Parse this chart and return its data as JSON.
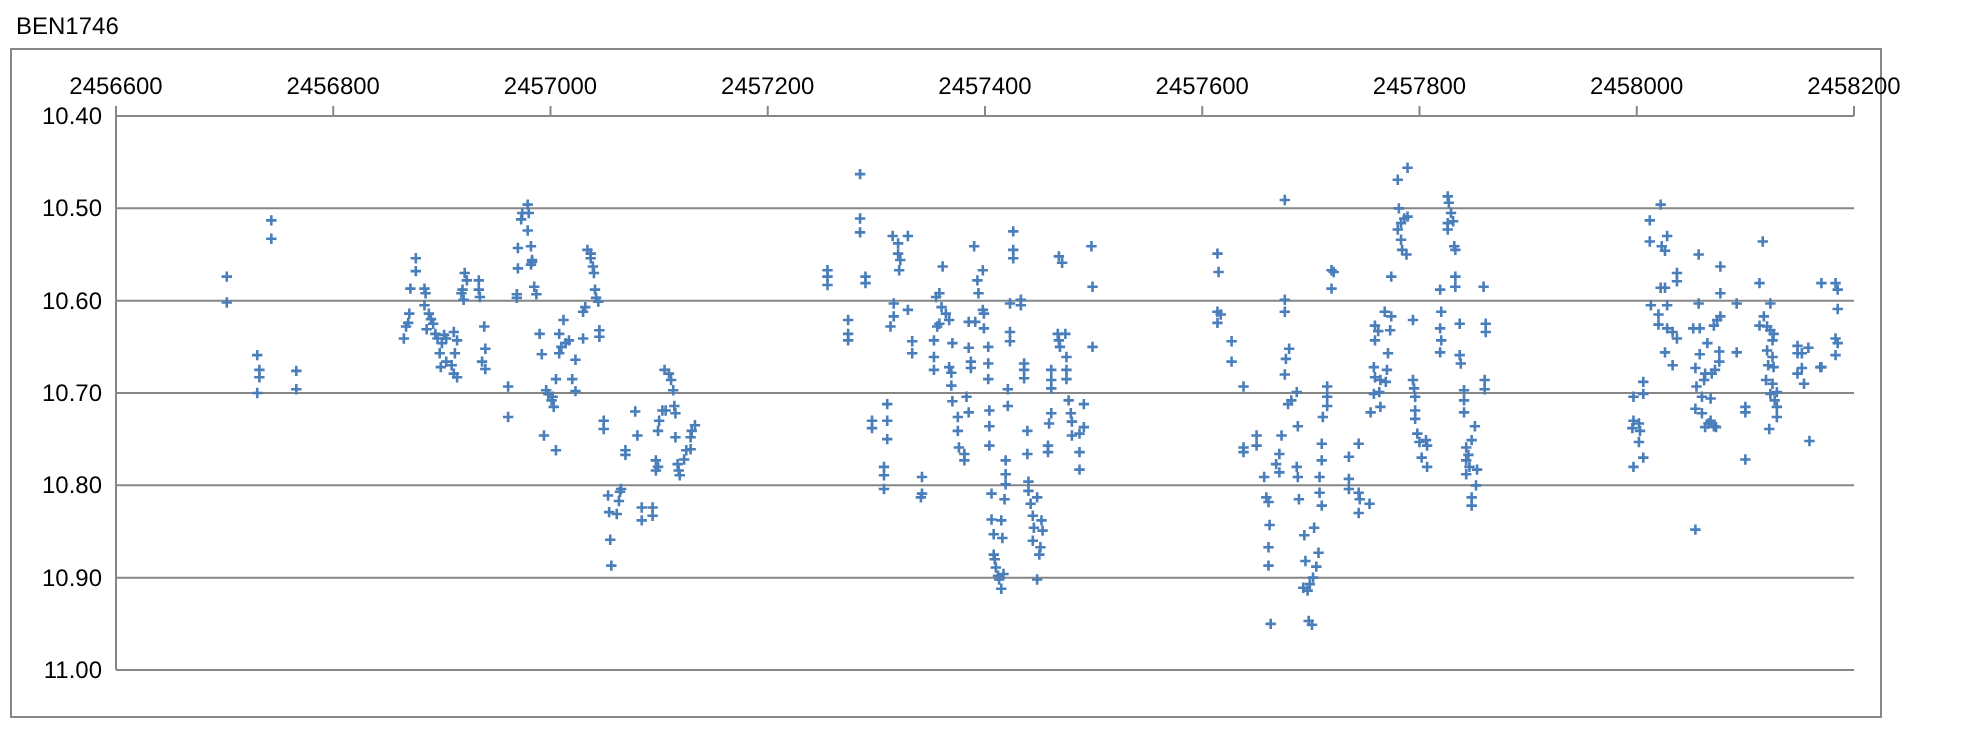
{
  "chart_data": {
    "type": "scatter",
    "title": "BEN1746",
    "xlim": [
      2456600,
      2458200
    ],
    "xticks": [
      2456600,
      2456800,
      2457000,
      2457200,
      2457400,
      2457600,
      2457800,
      2458000,
      2458200
    ],
    "ylim": [
      11.0,
      10.4
    ],
    "yticks": [
      {
        "value": 10.4,
        "label": "10.40"
      },
      {
        "value": 10.5,
        "label": "10.50"
      },
      {
        "value": 10.6,
        "label": "10.60"
      },
      {
        "value": 10.7,
        "label": "10.70"
      },
      {
        "value": 10.8,
        "label": "10.80"
      },
      {
        "value": 10.9,
        "label": "10.90"
      },
      {
        "value": 11.0,
        "label": "11.00"
      }
    ],
    "grid": "y",
    "marker": "cross",
    "series": [
      {
        "color": "#4a7ebb",
        "x": [
          2456702,
          2456702,
          2456743,
          2456743,
          2456730,
          2456732,
          2456732,
          2456730,
          2456766,
          2456766,
          2456876,
          2456876,
          2456871,
          2456870,
          2456869,
          2456867,
          2456865,
          2456884,
          2456885,
          2456884,
          2456888,
          2456890,
          2456892,
          2456886,
          2456894,
          2456896,
          2456900,
          2456898,
          2456902,
          2456904,
          2456899,
          2456904,
          2456911,
          2456914,
          2456912,
          2456911,
          2456914,
          2456909,
          2456921,
          2456923,
          2456919,
          2456920,
          2456918,
          2456934,
          2456934,
          2456935,
          2456939,
          2456940,
          2456937,
          2456940,
          2456961,
          2456961,
          2456970,
          2456970,
          2456969,
          2456969,
          2456973,
          2456974,
          2456979,
          2456980,
          2456979,
          2456982,
          2456983,
          2456982,
          2456985,
          2456987,
          2456983,
          2456990,
          2456992,
          2456996,
          2456998,
          2457001,
          2457003,
          2457002,
          2456994,
          2457005,
          2457005,
          2457008,
          2457008,
          2457010,
          2457012,
          2457014,
          2457017,
          2457020,
          2457023,
          2457023,
          2457030,
          2457030,
          2457032,
          2457034,
          2457037,
          2457039,
          2457040,
          2457037,
          2457041,
          2457042,
          2457044,
          2457045,
          2457045,
          2457049,
          2457049,
          2457053,
          2457054,
          2457056,
          2457055,
          2457063,
          2457064,
          2457065,
          2457061,
          2457069,
          2457069,
          2457078,
          2457080,
          2457084,
          2457084,
          2457094,
          2457094,
          2457097,
          2457099,
          2457097,
          2457099,
          2457100,
          2457103,
          2457106,
          2457105,
          2457109,
          2457111,
          2457113,
          2457114,
          2457115,
          2457115,
          2457117,
          2457118,
          2457119,
          2457123,
          2457125,
          2457129,
          2457129,
          2457130,
          2457133,
          2457285,
          2457285,
          2457285,
          2457255,
          2457255,
          2457255,
          2457290,
          2457290,
          2457274,
          2457274,
          2457274,
          2457315,
          2457320,
          2457320,
          2457322,
          2457321,
          2457329,
          2457316,
          2457316,
          2457313,
          2457329,
          2457333,
          2457333,
          2457310,
          2457310,
          2457310,
          2457296,
          2457296,
          2457307,
          2457307,
          2457307,
          2457342,
          2457342,
          2457341,
          2457361,
          2457358,
          2457355,
          2457360,
          2457364,
          2457367,
          2457358,
          2457356,
          2457353,
          2457353,
          2457353,
          2457367,
          2457369,
          2457369,
          2457370,
          2457370,
          2457375,
          2457375,
          2457376,
          2457381,
          2457381,
          2457383,
          2457385,
          2457385,
          2457387,
          2457387,
          2457385,
          2457391,
          2457390,
          2457393,
          2457394,
          2457398,
          2457398,
          2457399,
          2457399,
          2457403,
          2457403,
          2457403,
          2457404,
          2457404,
          2457404,
          2457406,
          2457406,
          2457408,
          2457408,
          2457409,
          2457410,
          2457412,
          2457413,
          2457415,
          2457417,
          2457415,
          2457416,
          2457418,
          2457419,
          2457419,
          2457419,
          2457421,
          2457421,
          2457423,
          2457423,
          2457423,
          2457426,
          2457426,
          2457426,
          2457433,
          2457433,
          2457436,
          2457436,
          2457436,
          2457439,
          2457439,
          2457440,
          2457440,
          2457442,
          2457444,
          2457444,
          2457445,
          2457448,
          2457452,
          2457453,
          2457450,
          2457448,
          2457451,
          2457458,
          2457458,
          2457459,
          2457461,
          2457461,
          2457461,
          2457461,
          2457467,
          2457468,
          2457469,
          2457474,
          2457468,
          2457471,
          2457475,
          2457475,
          2457475,
          2457477,
          2457479,
          2457480,
          2457480,
          2457487,
          2457487,
          2457487,
          2457491,
          2457491,
          2457498,
          2457499,
          2457499,
          2457614,
          2457615,
          2457614,
          2457617,
          2457614,
          2457627,
          2457627,
          2457638,
          2457638,
          2457638,
          2457650,
          2457650,
          2457657,
          2457659,
          2457661,
          2457662,
          2457661,
          2457661,
          2457663,
          2457668,
          2457671,
          2457671,
          2457673,
          2457676,
          2457676,
          2457676,
          2457680,
          2457677,
          2457676,
          2457679,
          2457682,
          2457687,
          2457688,
          2457687,
          2457688,
          2457689,
          2457694,
          2457695,
          2457693,
          2457697,
          2457699,
          2457698,
          2457701,
          2457702,
          2457705,
          2457707,
          2457703,
          2457708,
          2457708,
          2457710,
          2457710,
          2457710,
          2457711,
          2457715,
          2457715,
          2457715,
          2457719,
          2457721,
          2457719,
          2457735,
          2457735,
          2457735,
          2457744,
          2457744,
          2457745,
          2457744,
          2457754,
          2457755,
          2457758,
          2457763,
          2457764,
          2457758,
          2457759,
          2457764,
          2457769,
          2457770,
          2457759,
          2457759,
          2457762,
          2457768,
          2457774,
          2457773,
          2457771,
          2457774,
          2457780,
          2457783,
          2457786,
          2457789,
          2457783,
          2457784,
          2457788,
          2457780,
          2457781,
          2457789,
          2457794,
          2457794,
          2457795,
          2457796,
          2457796,
          2457796,
          2457798,
          2457800,
          2457802,
          2457806,
          2457807,
          2457807,
          2457819,
          2457820,
          2457819,
          2457820,
          2457819,
          2457826,
          2457827,
          2457829,
          2457826,
          2457831,
          2457826,
          2457832,
          2457833,
          2457833,
          2457833,
          2457837,
          2457837,
          2457838,
          2457841,
          2457841,
          2457841,
          2457843,
          2457843,
          2457845,
          2457846,
          2457843,
          2457848,
          2457851,
          2457853,
          2457852,
          2457848,
          2457848,
          2457859,
          2457861,
          2457861,
          2457860,
          2457860,
          2458022,
          2458012,
          2458012,
          2458028,
          2458023,
          2458026,
          2458037,
          2458037,
          2458022,
          2458026,
          2458013,
          2458028,
          2458020,
          2458020,
          2458028,
          2458033,
          2458037,
          2458026,
          2458033,
          2457997,
          2458006,
          2458006,
          2457997,
          2458002,
          2457996,
          2458003,
          2458002,
          2458006,
          2457997,
          2458057,
          2458077,
          2458057,
          2458052,
          2458058,
          2458065,
          2458058,
          2458071,
          2458074,
          2458077,
          2458077,
          2458076,
          2458076,
          2458072,
          2458069,
          2458054,
          2458055,
          2458062,
          2458063,
          2458060,
          2458068,
          2458054,
          2458060,
          2458063,
          2458068,
          2458071,
          2458066,
          2458073,
          2458092,
          2458092,
          2458100,
          2458100,
          2458100,
          2458054,
          2458113,
          2458116,
          2458123,
          2458113,
          2458117,
          2458120,
          2458123,
          2458125,
          2458126,
          2458120,
          2458125,
          2458121,
          2458126,
          2458119,
          2458125,
          2458129,
          2458123,
          2458127,
          2458129,
          2458129,
          2458122,
          2458148,
          2458152,
          2458158,
          2458148,
          2458152,
          2458148,
          2458154,
          2458159,
          2458169,
          2458170,
          2458170,
          2458183,
          2458185,
          2458185,
          2458183,
          2458185,
          2458183
        ],
        "values": [
          10.574,
          10.602,
          10.513,
          10.533,
          10.659,
          10.675,
          10.683,
          10.7,
          10.676,
          10.696,
          10.554,
          10.568,
          10.587,
          10.614,
          10.624,
          10.628,
          10.641,
          10.587,
          10.592,
          10.605,
          10.614,
          10.62,
          10.625,
          10.631,
          10.636,
          10.641,
          10.646,
          10.657,
          10.637,
          10.641,
          10.672,
          10.666,
          10.634,
          10.643,
          10.657,
          10.679,
          10.683,
          10.67,
          10.57,
          10.578,
          10.588,
          10.599,
          10.592,
          10.578,
          10.588,
          10.596,
          10.628,
          10.652,
          10.666,
          10.674,
          10.693,
          10.726,
          10.543,
          10.565,
          10.593,
          10.597,
          10.512,
          10.505,
          10.496,
          10.505,
          10.524,
          10.541,
          10.556,
          10.561,
          10.585,
          10.593,
          10.558,
          10.636,
          10.658,
          10.697,
          10.701,
          10.708,
          10.715,
          10.704,
          10.746,
          10.762,
          10.685,
          10.657,
          10.636,
          10.65,
          10.621,
          10.646,
          10.643,
          10.685,
          10.664,
          10.698,
          10.612,
          10.641,
          10.607,
          10.545,
          10.554,
          10.563,
          10.57,
          10.549,
          10.588,
          10.597,
          10.601,
          10.632,
          10.639,
          10.73,
          10.739,
          10.811,
          10.829,
          10.887,
          10.859,
          10.817,
          10.807,
          10.804,
          10.831,
          10.762,
          10.767,
          10.72,
          10.746,
          10.824,
          10.838,
          10.824,
          10.833,
          10.773,
          10.78,
          10.784,
          10.741,
          10.73,
          10.719,
          10.719,
          10.675,
          10.679,
          10.686,
          10.697,
          10.714,
          10.722,
          10.748,
          10.777,
          10.784,
          10.789,
          10.772,
          10.762,
          10.761,
          10.748,
          10.741,
          10.735,
          10.463,
          10.511,
          10.526,
          10.567,
          10.574,
          10.583,
          10.574,
          10.581,
          10.621,
          10.636,
          10.643,
          10.53,
          10.538,
          10.549,
          10.556,
          10.567,
          10.53,
          10.603,
          10.617,
          10.628,
          10.61,
          10.644,
          10.657,
          10.712,
          10.73,
          10.75,
          10.73,
          10.738,
          10.78,
          10.789,
          10.804,
          10.791,
          10.809,
          10.813,
          10.563,
          10.592,
          10.596,
          10.607,
          10.614,
          10.621,
          10.625,
          10.628,
          10.643,
          10.661,
          10.675,
          10.672,
          10.678,
          10.692,
          10.646,
          10.709,
          10.726,
          10.741,
          10.759,
          10.766,
          10.773,
          10.704,
          10.721,
          10.651,
          10.666,
          10.673,
          10.623,
          10.623,
          10.541,
          10.578,
          10.592,
          10.567,
          10.61,
          10.614,
          10.63,
          10.65,
          10.668,
          10.685,
          10.719,
          10.736,
          10.757,
          10.809,
          10.837,
          10.853,
          10.875,
          10.88,
          10.889,
          10.898,
          10.902,
          10.912,
          10.896,
          10.838,
          10.857,
          10.815,
          10.799,
          10.788,
          10.773,
          10.696,
          10.714,
          10.603,
          10.634,
          10.644,
          10.525,
          10.545,
          10.554,
          10.599,
          10.605,
          10.668,
          10.675,
          10.684,
          10.741,
          10.766,
          10.796,
          10.806,
          10.82,
          10.833,
          10.86,
          10.846,
          10.813,
          10.838,
          10.849,
          10.875,
          10.902,
          10.867,
          10.757,
          10.764,
          10.733,
          10.722,
          10.675,
          10.686,
          10.695,
          10.636,
          10.643,
          10.65,
          10.636,
          10.552,
          10.559,
          10.661,
          10.675,
          10.685,
          10.708,
          10.722,
          10.731,
          10.746,
          10.744,
          10.764,
          10.783,
          10.712,
          10.737,
          10.541,
          10.585,
          10.65,
          10.549,
          10.569,
          10.612,
          10.615,
          10.624,
          10.644,
          10.666,
          10.693,
          10.759,
          10.764,
          10.746,
          10.757,
          10.791,
          10.813,
          10.818,
          10.843,
          10.867,
          10.887,
          10.95,
          10.777,
          10.766,
          10.786,
          10.746,
          10.491,
          10.599,
          10.612,
          10.652,
          10.663,
          10.68,
          10.712,
          10.708,
          10.699,
          10.736,
          10.78,
          10.791,
          10.815,
          10.854,
          10.882,
          10.911,
          10.914,
          10.907,
          10.947,
          10.951,
          10.9,
          10.888,
          10.873,
          10.846,
          10.791,
          10.808,
          10.822,
          10.755,
          10.773,
          10.726,
          10.693,
          10.704,
          10.714,
          10.567,
          10.569,
          10.587,
          10.769,
          10.793,
          10.804,
          10.755,
          10.808,
          10.815,
          10.83,
          10.82,
          10.721,
          10.701,
          10.699,
          10.715,
          10.672,
          10.683,
          10.686,
          10.688,
          10.675,
          10.627,
          10.643,
          10.633,
          10.612,
          10.617,
          10.632,
          10.657,
          10.574,
          10.523,
          10.516,
          10.511,
          10.509,
          10.534,
          10.545,
          10.55,
          10.469,
          10.5,
          10.456,
          10.621,
          10.686,
          10.695,
          10.704,
          10.719,
          10.728,
          10.744,
          10.753,
          10.77,
          10.751,
          10.757,
          10.78,
          10.588,
          10.612,
          10.63,
          10.643,
          10.656,
          10.487,
          10.494,
          10.505,
          10.516,
          10.514,
          10.523,
          10.541,
          10.545,
          10.574,
          10.585,
          10.625,
          10.659,
          10.668,
          10.697,
          10.708,
          10.721,
          10.759,
          10.773,
          10.767,
          10.78,
          10.788,
          10.751,
          10.736,
          10.783,
          10.8,
          10.813,
          10.822,
          10.585,
          10.625,
          10.634,
          10.686,
          10.696,
          10.496,
          10.513,
          10.536,
          10.53,
          10.541,
          10.546,
          10.57,
          10.579,
          10.586,
          10.586,
          10.605,
          10.605,
          10.615,
          10.626,
          10.63,
          10.634,
          10.641,
          10.656,
          10.67,
          10.704,
          10.688,
          10.701,
          10.73,
          10.733,
          10.738,
          10.741,
          10.753,
          10.77,
          10.78,
          10.55,
          10.563,
          10.603,
          10.63,
          10.63,
          10.646,
          10.658,
          10.627,
          10.621,
          10.617,
          10.592,
          10.655,
          10.666,
          10.675,
          10.679,
          10.673,
          10.693,
          10.686,
          10.679,
          10.704,
          10.706,
          10.717,
          10.722,
          10.737,
          10.73,
          10.736,
          10.733,
          10.737,
          10.603,
          10.656,
          10.715,
          10.721,
          10.772,
          10.848,
          10.581,
          10.536,
          10.603,
          10.627,
          10.617,
          10.628,
          10.632,
          10.643,
          10.636,
          10.654,
          10.661,
          10.67,
          10.672,
          10.686,
          10.69,
          10.699,
          10.701,
          10.708,
          10.715,
          10.726,
          10.739,
          10.649,
          10.657,
          10.651,
          10.657,
          10.673,
          10.679,
          10.69,
          10.752,
          10.672,
          10.672,
          10.581,
          10.581,
          10.588,
          10.609,
          10.641,
          10.646,
          10.659
        ]
      }
    ]
  }
}
